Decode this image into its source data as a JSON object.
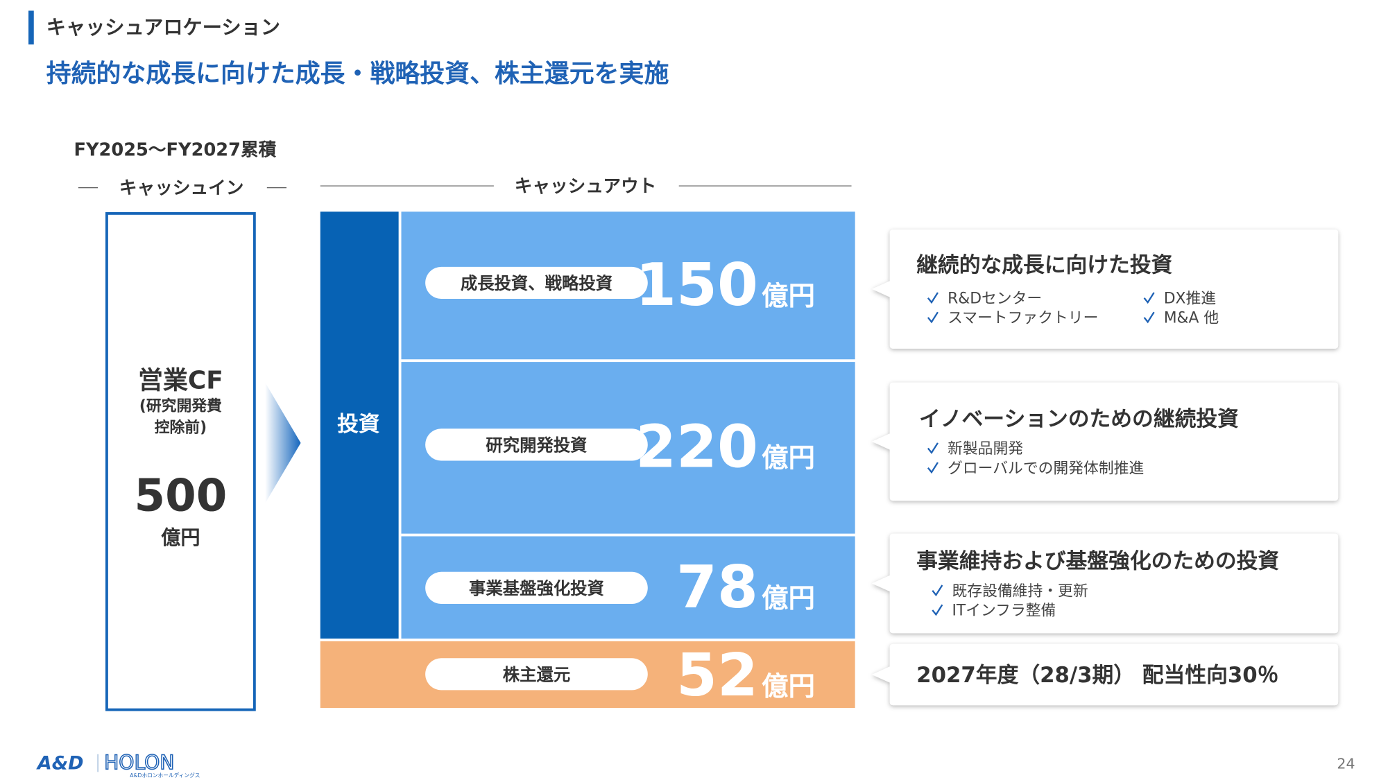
{
  "header": {
    "section": "キャッシュアロケーション",
    "title": "持続的な成長に向けた成長・戦略投資、株主還元を実施"
  },
  "period": "FY2025～FY2027累積",
  "cash_in": {
    "heading": "キャッシュイン",
    "label": "営業CF",
    "note": [
      "(研究開発費",
      "控除前)"
    ],
    "value": 500,
    "unit": "億円"
  },
  "cash_out": {
    "heading": "キャッシュアウト",
    "group": "投資",
    "items": [
      {
        "label": "成長投資、戦略投資",
        "value": 150,
        "unit": "億円",
        "detail": {
          "title": "継続的な成長に向けた投資",
          "bullets": [
            "R&Dセンター",
            "スマートファクトリー",
            "DX推進",
            "M&A 他"
          ]
        }
      },
      {
        "label": "研究開発投資",
        "value": 220,
        "unit": "億円",
        "detail": {
          "title": "イノベーションのための継続投資",
          "bullets": [
            "新製品開発",
            "グローバルでの開発体制推進"
          ]
        }
      },
      {
        "label": "事業基盤強化投資",
        "value": 78,
        "unit": "億円",
        "detail": {
          "title": "事業維持および基盤強化のための投資",
          "bullets": [
            "既存設備維持・更新",
            "ITインフラ整備"
          ]
        }
      },
      {
        "label": "株主還元",
        "value": 52,
        "unit": "億円",
        "detail": {
          "title": "2027年度（28/3期） 配当性向30％",
          "bullets": []
        }
      }
    ]
  },
  "footer": {
    "logo_and": "A&D",
    "logo_holon": "HOLON",
    "logo_sub": "A&Dホロンホールディングス",
    "page": "24"
  }
}
